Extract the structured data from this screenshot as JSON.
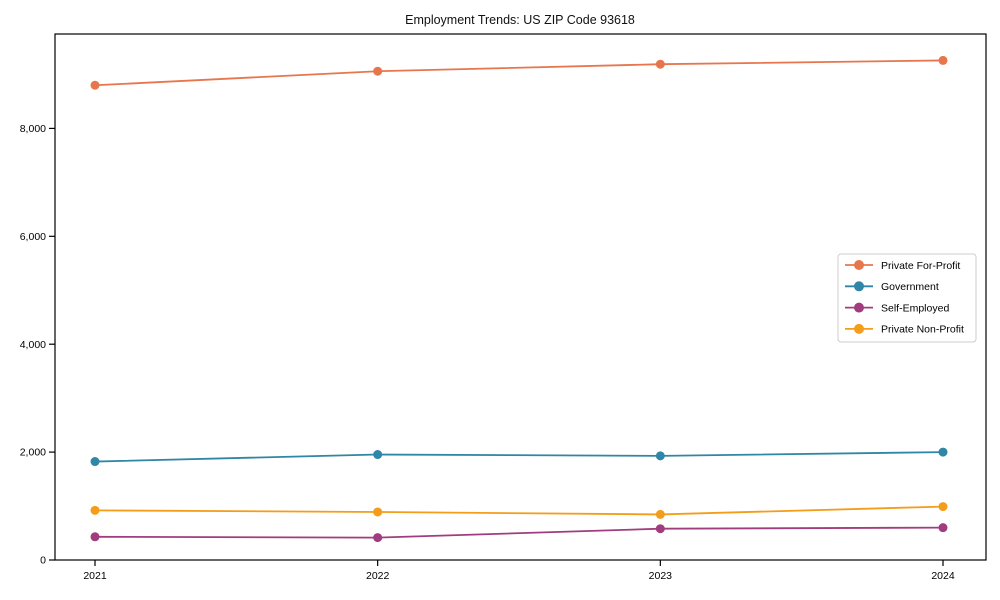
{
  "figure": {
    "background": "#ffffff",
    "axis_color": "#000000",
    "text_color": "#111111"
  },
  "chart_data": {
    "type": "line",
    "title": "Employment Trends: US ZIP Code 93618",
    "x": [
      2021,
      2022,
      2023,
      2024
    ],
    "x_tick_labels": [
      "2021",
      "2022",
      "2023",
      "2024"
    ],
    "yticks": [
      0,
      2000,
      4000,
      6000,
      8000
    ],
    "ytick_labels": [
      "0",
      "2,000",
      "4,000",
      "6,000",
      "8,000"
    ],
    "ylim": [
      0,
      9750
    ],
    "xlabel": "",
    "ylabel": "",
    "grid": false,
    "marker": "circle",
    "legend_position": "center-right",
    "series": [
      {
        "name": "Private For-Profit",
        "color": "#e8764d",
        "values": [
          8800,
          9060,
          9190,
          9260
        ]
      },
      {
        "name": "Government",
        "color": "#2f86a6",
        "values": [
          1825,
          1955,
          1930,
          2000
        ]
      },
      {
        "name": "Self-Employed",
        "color": "#a13d7e",
        "values": [
          430,
          415,
          580,
          600
        ]
      },
      {
        "name": "Private Non-Profit",
        "color": "#f49d1a",
        "values": [
          920,
          890,
          845,
          990
        ]
      }
    ]
  }
}
